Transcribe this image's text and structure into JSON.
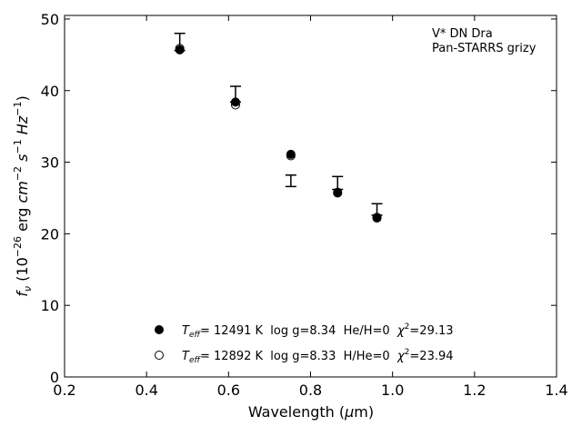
{
  "chart_data": {
    "type": "scatter",
    "title_lines": [
      "V* DN Dra",
      "Pan-STARRS grizy"
    ],
    "xlabel": "Wavelength (μm)",
    "ylabel": "f_ν (10^−26 erg cm^−2 s^−1 Hz^−1)",
    "xlim": [
      0.2,
      1.4
    ],
    "ylim": [
      0,
      50.5
    ],
    "xticks": [
      0.2,
      0.4,
      0.6,
      0.8,
      1.0,
      1.2,
      1.4
    ],
    "xtick_labels": [
      "0.2",
      "0.4",
      "0.6",
      "0.8",
      "1.0",
      "1.2",
      "1.4"
    ],
    "yticks": [
      0,
      10,
      20,
      30,
      40,
      50
    ],
    "ytick_labels": [
      "0",
      "10",
      "20",
      "30",
      "40",
      "50"
    ],
    "grid": false,
    "legend_position": "bottom-center",
    "observed": {
      "x": [
        0.481,
        0.617,
        0.752,
        0.866,
        0.962
      ],
      "y": [
        46.8,
        39.5,
        27.4,
        27.1,
        23.4
      ],
      "yerr": [
        1.2,
        1.1,
        0.8,
        0.9,
        0.8
      ]
    },
    "series": [
      {
        "name": "T_eff= 12491 K  log g=8.34  He/H=0  χ²=29.13",
        "marker": "filled-circle",
        "x": [
          0.481,
          0.617,
          0.752,
          0.866,
          0.962
        ],
        "y": [
          45.7,
          38.4,
          31.1,
          25.8,
          22.2
        ]
      },
      {
        "name": "T_eff= 12892 K  log g=8.33  H/He=0  χ²=23.94",
        "marker": "open-circle",
        "x": [
          0.481,
          0.617,
          0.752,
          0.866,
          0.962
        ],
        "y": [
          45.9,
          38.0,
          30.9,
          25.7,
          22.3
        ]
      }
    ],
    "legend_labels": [
      {
        "teff_label": "T",
        "teff_sub": "eff",
        "text": "= 12491 K  log g=8.34  He/H=0  ",
        "chi": "χ",
        "chi_sup": "2",
        "chi_text": "=29.13"
      },
      {
        "teff_label": "T",
        "teff_sub": "eff",
        "text": "= 12892 K  log g=8.33  H/He=0  ",
        "chi": "χ",
        "chi_sup": "2",
        "chi_text": "=23.94"
      }
    ],
    "colors": {
      "marker": "#000000",
      "axes": "#000000",
      "background": "#ffffff"
    }
  }
}
